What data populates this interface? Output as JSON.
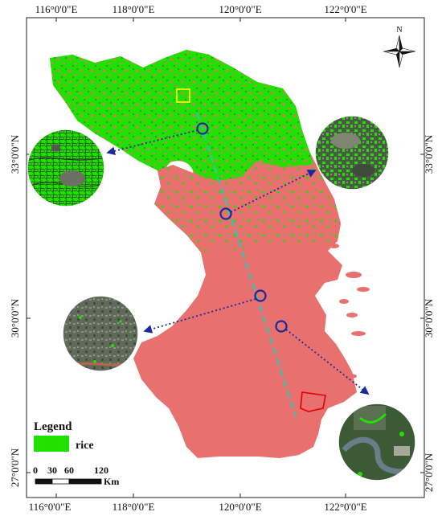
{
  "axes": {
    "lon_labels": [
      "116°0'0\"E",
      "118°0'0\"E",
      "120°0'0\"E",
      "122°0'0\"E"
    ],
    "lat_labels": [
      "33°0'0\"N",
      "30°0'0\"N",
      "27°0'0\"N"
    ]
  },
  "legend": {
    "title": "Legend",
    "items": [
      {
        "label": "rice",
        "color": "#22e000"
      }
    ]
  },
  "scale_bar": {
    "ticks": [
      "0",
      "30",
      "60",
      "120"
    ],
    "unit": "Km"
  },
  "north_arrow": {
    "label": "N"
  },
  "colors": {
    "region_fill": "#e8706e",
    "rice": "#22e000",
    "transect": "#2ec8b0",
    "sample_circle": "#1a2a9a",
    "callout_arrow": "#1a2a9a",
    "highlight_box_yellow": "#ffee00",
    "highlight_box_red": "#e00000"
  },
  "insets": [
    {
      "name": "inset-northwest"
    },
    {
      "name": "inset-northeast"
    },
    {
      "name": "inset-southwest"
    },
    {
      "name": "inset-southeast"
    }
  ]
}
